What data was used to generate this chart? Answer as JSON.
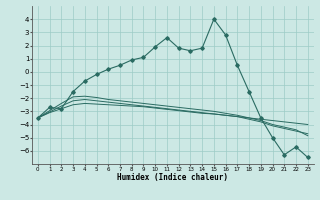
{
  "xlabel": "Humidex (Indice chaleur)",
  "background_color": "#cce8e4",
  "grid_color": "#9eccc6",
  "line_color": "#2a6b62",
  "x_values": [
    0,
    1,
    2,
    3,
    4,
    5,
    6,
    7,
    8,
    9,
    10,
    11,
    12,
    13,
    14,
    15,
    16,
    17,
    18,
    19,
    20,
    21,
    22,
    23
  ],
  "y_main": [
    -3.5,
    -2.7,
    -2.8,
    -1.5,
    -0.7,
    -0.2,
    0.2,
    0.5,
    0.9,
    1.1,
    1.9,
    2.6,
    1.8,
    1.6,
    1.8,
    4.0,
    2.8,
    0.5,
    -1.5,
    -3.5,
    -5.0,
    -6.3,
    -5.7,
    -6.5
  ],
  "y_line1": [
    -3.5,
    -3.1,
    -2.8,
    -2.5,
    -2.4,
    -2.45,
    -2.5,
    -2.55,
    -2.6,
    -2.65,
    -2.75,
    -2.85,
    -2.95,
    -3.05,
    -3.15,
    -3.2,
    -3.3,
    -3.4,
    -3.5,
    -3.6,
    -3.7,
    -3.8,
    -3.9,
    -4.0
  ],
  "y_line2": [
    -3.5,
    -3.05,
    -2.6,
    -2.2,
    -2.1,
    -2.2,
    -2.3,
    -2.4,
    -2.5,
    -2.6,
    -2.7,
    -2.8,
    -2.9,
    -3.0,
    -3.1,
    -3.2,
    -3.3,
    -3.4,
    -3.6,
    -3.8,
    -4.1,
    -4.3,
    -4.5,
    -4.7
  ],
  "y_line3": [
    -3.5,
    -2.95,
    -2.4,
    -1.9,
    -1.85,
    -1.95,
    -2.1,
    -2.2,
    -2.3,
    -2.4,
    -2.5,
    -2.6,
    -2.7,
    -2.8,
    -2.9,
    -3.0,
    -3.15,
    -3.3,
    -3.5,
    -3.7,
    -4.0,
    -4.2,
    -4.4,
    -4.85
  ],
  "ylim": [
    -7,
    5
  ],
  "xlim": [
    -0.5,
    23.5
  ],
  "yticks": [
    -6,
    -5,
    -4,
    -3,
    -2,
    -1,
    0,
    1,
    2,
    3,
    4
  ],
  "xticks": [
    0,
    1,
    2,
    3,
    4,
    5,
    6,
    7,
    8,
    9,
    10,
    11,
    12,
    13,
    14,
    15,
    16,
    17,
    18,
    19,
    20,
    21,
    22,
    23
  ]
}
